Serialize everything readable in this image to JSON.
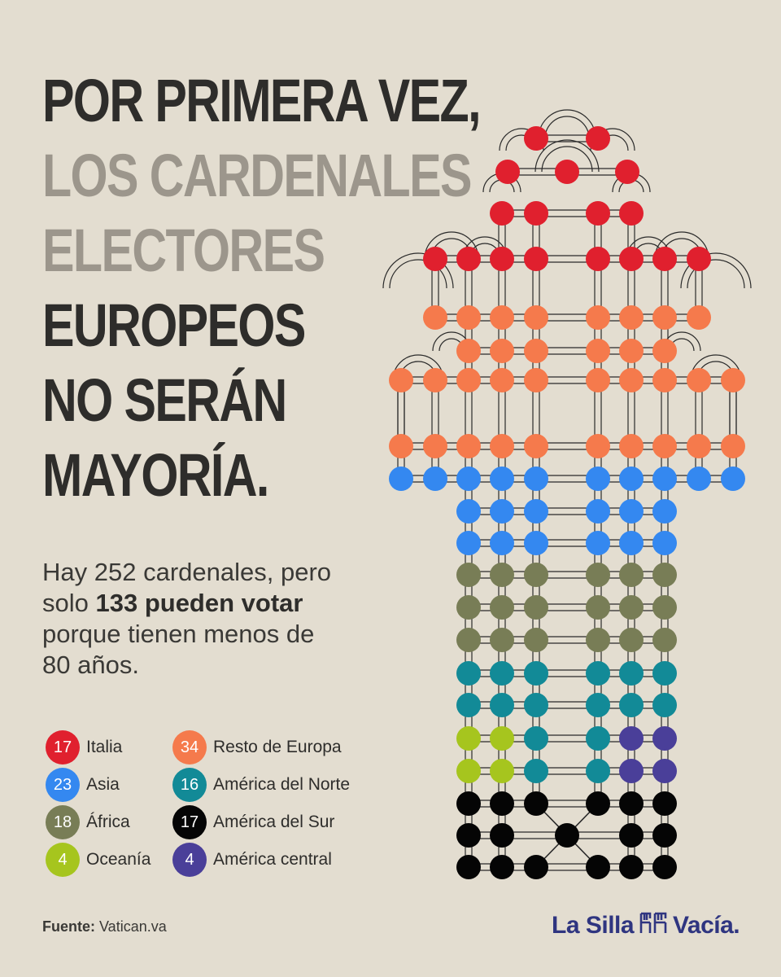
{
  "headline": {
    "line1": "POR PRIMERA VEZ,",
    "line2": "LOS CARDENALES",
    "line3": "ELECTORES",
    "line4": "EUROPEOS",
    "line5": "NO SERÁN",
    "line6": "MAYORÍA."
  },
  "subtitle": {
    "part1": "Hay 252 cardenales, pero solo ",
    "bold": "133 pueden votar",
    "part2": " porque tienen menos de 80 años."
  },
  "source": {
    "label": "Fuente:",
    "value": "Vatican.va"
  },
  "brand": {
    "left": "La Silla",
    "right": "Vacía."
  },
  "chart_data": {
    "type": "pictogram",
    "total_cardinals": 252,
    "electors": 133,
    "series": [
      {
        "name": "Italia",
        "value": 17,
        "color": "#e0202e"
      },
      {
        "name": "Resto de Europa",
        "value": 34,
        "color": "#f57a4c"
      },
      {
        "name": "Asia",
        "value": 23,
        "color": "#3488f0"
      },
      {
        "name": "África",
        "value": 18,
        "color": "#787d56"
      },
      {
        "name": "Oceanía",
        "value": 4,
        "color": "#a6c51e"
      },
      {
        "name": "América del Norte",
        "value": 16,
        "color": "#128a97"
      },
      {
        "name": "América del Sur",
        "value": 17,
        "color": "#050505"
      },
      {
        "name": "América central",
        "value": 4,
        "color": "#4a3f99"
      }
    ]
  },
  "legend": [
    {
      "count": "17",
      "label": "Italia",
      "color": "#e0202e"
    },
    {
      "count": "34",
      "label": "Resto de Europa",
      "color": "#f57a4c"
    },
    {
      "count": "23",
      "label": "Asia",
      "color": "#3488f0"
    },
    {
      "count": "16",
      "label": "América del Norte",
      "color": "#128a97"
    },
    {
      "count": "18",
      "label": "África",
      "color": "#787d56"
    },
    {
      "count": "17",
      "label": "América del Sur",
      "color": "#050505"
    },
    {
      "count": "4",
      "label": "Oceanía",
      "color": "#a6c51e"
    },
    {
      "count": "4",
      "label": "América central",
      "color": "#4a3f99"
    }
  ]
}
